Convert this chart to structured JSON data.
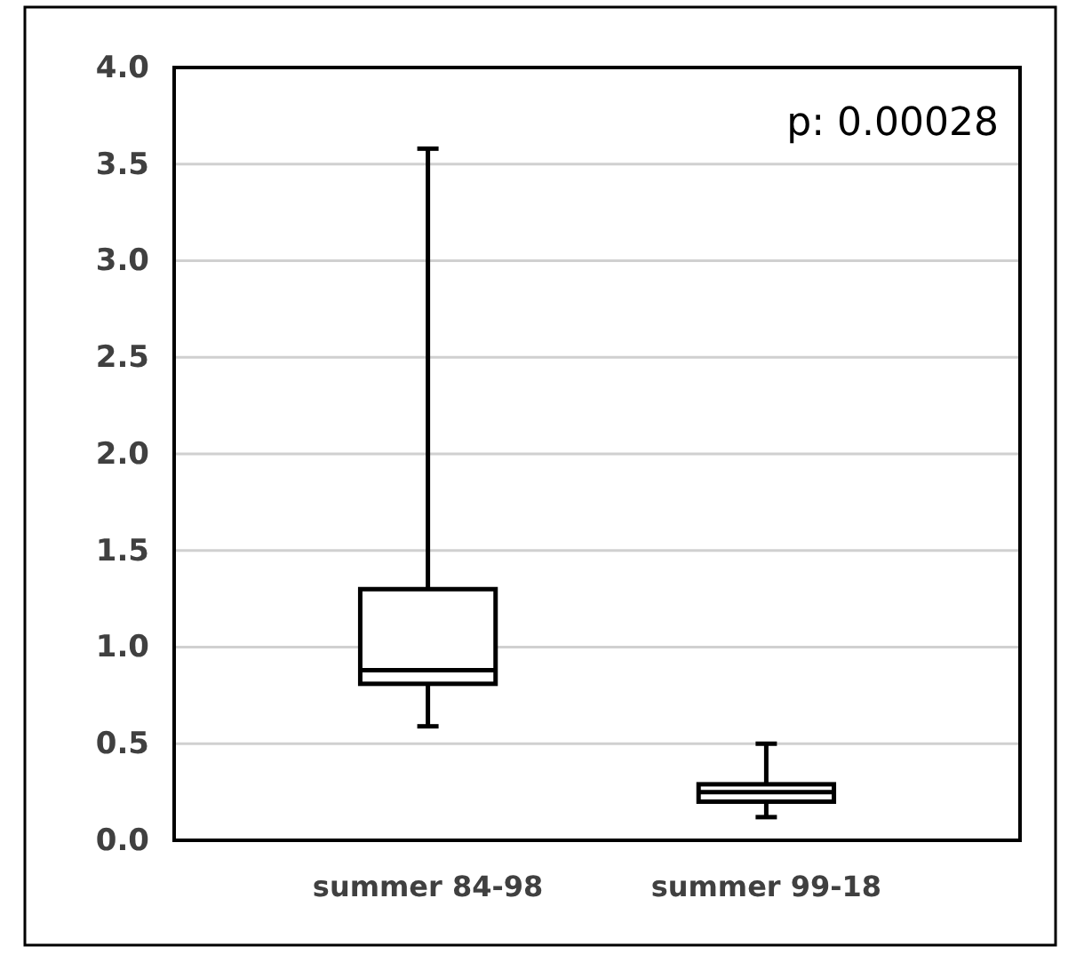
{
  "chart_data": {
    "type": "box",
    "categories": [
      "summer 84-98",
      "summer 99-18"
    ],
    "boxes": [
      {
        "low": 0.59,
        "q1": 0.81,
        "median": 0.88,
        "q3": 1.3,
        "high": 3.58
      },
      {
        "low": 0.12,
        "q1": 0.2,
        "median": 0.25,
        "q3": 0.29,
        "high": 0.5
      }
    ],
    "ylim": [
      0,
      4
    ],
    "yticks": [
      {
        "value": 0,
        "label": "0.0"
      },
      {
        "value": 0.5,
        "label": "0.5"
      },
      {
        "value": 1,
        "label": "1.0"
      },
      {
        "value": 1.5,
        "label": "1.5"
      },
      {
        "value": 2,
        "label": "2.0"
      },
      {
        "value": 2.5,
        "label": "2.5"
      },
      {
        "value": 3,
        "label": "3.0"
      },
      {
        "value": 3.5,
        "label": "3.5"
      },
      {
        "value": 4,
        "label": "4.0"
      }
    ],
    "grid": "y",
    "annotations": [
      "p: 0.00028"
    ]
  }
}
